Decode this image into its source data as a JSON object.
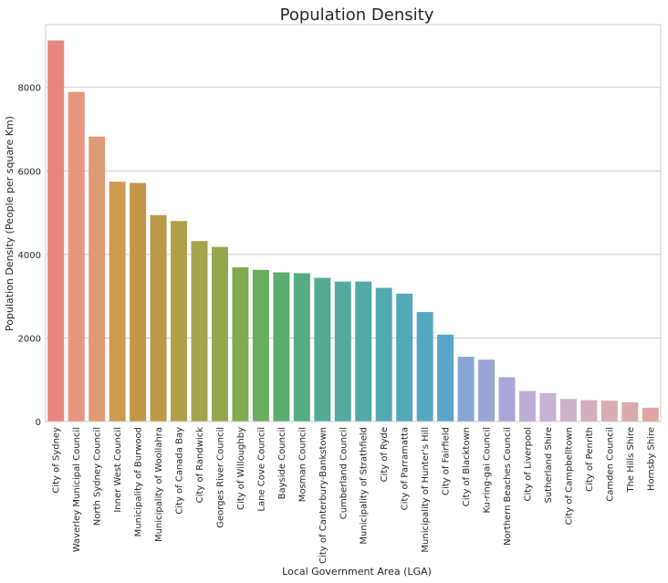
{
  "chart_data": {
    "type": "bar",
    "title": "Population Density",
    "xlabel": "Local Government Area (LGA)",
    "ylabel": "Population Density (People per square Km)",
    "ylim": [
      0,
      9500
    ],
    "yticks": [
      0,
      2000,
      4000,
      6000,
      8000
    ],
    "grid": "horizontal",
    "categories": [
      "City of Sydney",
      "Waverley Municipal Council",
      "North Sydney Council",
      "Inner West Council",
      "Municipality of Burwood",
      "Municipality of Woollahra",
      "City of Canada Bay",
      "City of Randwick",
      "Georges River Council",
      "City of Willoughby",
      "Lane Cove Council",
      "Bayside Council",
      "Mosman Council",
      "City of Canterbury-Bankstown",
      "Cumberland Council",
      "Municipality of Strathfield",
      "City of Ryde",
      "City of Parramatta",
      "Municipality of Hunter's Hill",
      "City of Fairfield",
      "City of Blacktown",
      "Ku-ring-gai Council",
      "Northern Beaches Council",
      "City of Liverpool",
      "Sutherland Shire",
      "City of Campbelltown",
      "City of Penrith",
      "Camden Council",
      "The Hills Shire",
      "Hornsby Shire"
    ],
    "values": [
      9120,
      7890,
      6820,
      5740,
      5710,
      4940,
      4800,
      4320,
      4180,
      3690,
      3630,
      3570,
      3550,
      3440,
      3350,
      3350,
      3200,
      3060,
      2620,
      2080,
      1550,
      1480,
      1060,
      730,
      680,
      540,
      510,
      500,
      460,
      330
    ],
    "colors": [
      "#e8857f",
      "#e6967f",
      "#de9b76",
      "#cf9a50",
      "#c59645",
      "#bb9a46",
      "#b1a04a",
      "#a3a54d",
      "#94a84f",
      "#80ab51",
      "#6aad5e",
      "#5aad6e",
      "#55ad82",
      "#53ac92",
      "#52ab9e",
      "#52aaa8",
      "#52a9b0",
      "#53a8b8",
      "#56a7c0",
      "#5ba5c8",
      "#85a5d2",
      "#99a5d6",
      "#aaa6d8",
      "#bcaed6",
      "#c8b2d2",
      "#cfb2c8",
      "#d4aebd",
      "#d9adb4",
      "#dcaaaa",
      "#e1a6a2"
    ]
  }
}
